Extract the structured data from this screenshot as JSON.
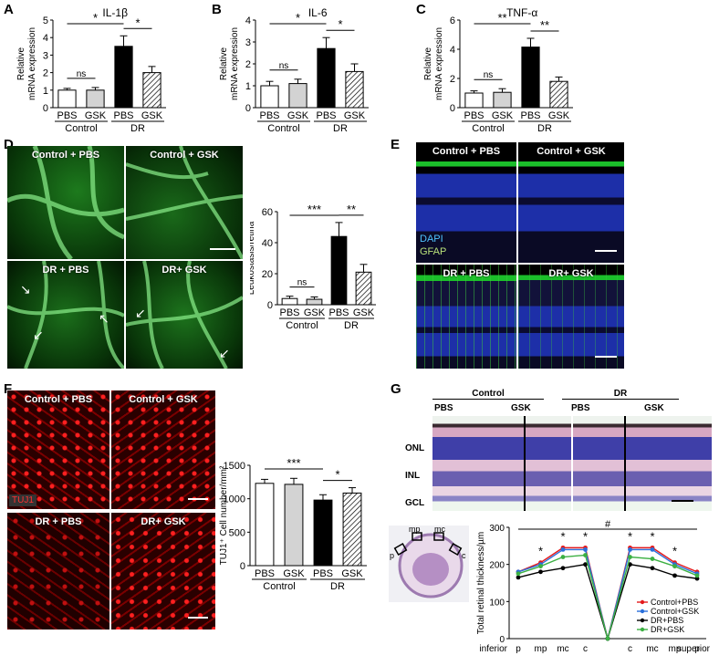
{
  "panels": {
    "A": "A",
    "B": "B",
    "C": "C",
    "D": "D",
    "E": "E",
    "F": "F",
    "G": "G"
  },
  "images": {
    "D_tl": "Control + PBS",
    "D_tr": "Control + GSK",
    "D_bl": "DR + PBS",
    "D_br": "DR+ GSK",
    "E_tl": "Control + PBS",
    "E_tr": "Control + GSK",
    "E_bl": "DR + PBS",
    "E_br": "DR+ GSK",
    "E_dapi": "DAPI",
    "E_gfap": "GFAP",
    "F_tl": "Control + PBS",
    "F_tr": "Control + GSK",
    "F_bl": "DR + PBS",
    "F_br": "DR+ GSK",
    "F_tuj1": "TUJ1",
    "G_control": "Control",
    "G_dr": "DR",
    "G_pbs1": "PBS",
    "G_gsk1": "GSK",
    "G_pbs2": "PBS",
    "G_gsk2": "GSK",
    "G_onl": "ONL",
    "G_inl": "INL",
    "G_gcl": "GCL",
    "G_p": "p",
    "G_mp": "mp",
    "G_mc": "mc",
    "G_c": "c"
  },
  "colors": {
    "black": "#000000",
    "white": "#ffffff",
    "grey": "#d0d0d0",
    "red": "#e41a1c",
    "blue": "#2a6fdb",
    "green": "#3cb043"
  },
  "chart_data": [
    {
      "id": "A",
      "type": "bar",
      "title": "IL-1β",
      "ylabel": "Relative mRNA expression",
      "ylim": [
        0,
        5
      ],
      "yticks": [
        0,
        1,
        2,
        3,
        4,
        5
      ],
      "categories": [
        "PBS",
        "GSK",
        "PBS",
        "GSK"
      ],
      "groups": [
        "Control",
        "DR"
      ],
      "values": [
        1.0,
        1.0,
        3.5,
        2.0
      ],
      "errors": [
        0.1,
        0.15,
        0.6,
        0.35
      ],
      "annotations": [
        {
          "text": "*",
          "between": [
            0,
            2
          ]
        },
        {
          "text": "ns",
          "between": [
            0,
            1
          ]
        },
        {
          "text": "*",
          "between": [
            2,
            3
          ]
        }
      ]
    },
    {
      "id": "B",
      "type": "bar",
      "title": "IL-6",
      "ylabel": "Relative mRNA expression",
      "ylim": [
        0,
        4
      ],
      "yticks": [
        0,
        1,
        2,
        3,
        4
      ],
      "categories": [
        "PBS",
        "GSK",
        "PBS",
        "GSK"
      ],
      "groups": [
        "Control",
        "DR"
      ],
      "values": [
        1.0,
        1.1,
        2.7,
        1.65
      ],
      "errors": [
        0.2,
        0.2,
        0.5,
        0.35
      ],
      "annotations": [
        {
          "text": "*",
          "between": [
            0,
            2
          ]
        },
        {
          "text": "ns",
          "between": [
            0,
            1
          ]
        },
        {
          "text": "*",
          "between": [
            2,
            3
          ]
        }
      ]
    },
    {
      "id": "C",
      "type": "bar",
      "title": "TNF-α",
      "ylabel": "Relative mRNA expression",
      "ylim": [
        0,
        6
      ],
      "yticks": [
        0,
        2,
        4,
        6
      ],
      "categories": [
        "PBS",
        "GSK",
        "PBS",
        "GSK"
      ],
      "groups": [
        "Control",
        "DR"
      ],
      "values": [
        1.0,
        1.05,
        4.15,
        1.8
      ],
      "errors": [
        0.15,
        0.25,
        0.6,
        0.3
      ],
      "annotations": [
        {
          "text": "**",
          "between": [
            0,
            2
          ]
        },
        {
          "text": "ns",
          "between": [
            0,
            1
          ]
        },
        {
          "text": "**",
          "between": [
            2,
            3
          ]
        }
      ]
    },
    {
      "id": "D",
      "type": "bar",
      "title": "",
      "ylabel": "Leukostasis/retina",
      "ylim": [
        0,
        60
      ],
      "yticks": [
        0,
        20,
        40,
        60
      ],
      "categories": [
        "PBS",
        "GSK",
        "PBS",
        "GSK"
      ],
      "groups": [
        "Control",
        "DR"
      ],
      "values": [
        4,
        3.5,
        44,
        21
      ],
      "errors": [
        1.5,
        1.5,
        9,
        5
      ],
      "annotations": [
        {
          "text": "***",
          "between": [
            0,
            2
          ]
        },
        {
          "text": "ns",
          "between": [
            0,
            1
          ]
        },
        {
          "text": "**",
          "between": [
            2,
            3
          ]
        }
      ]
    },
    {
      "id": "F",
      "type": "bar",
      "title": "",
      "ylabel": "TUJ1⁺ Cell number/mm²",
      "ylim": [
        0,
        1500
      ],
      "yticks": [
        0,
        500,
        1000,
        1500
      ],
      "categories": [
        "PBS",
        "GSK",
        "PBS",
        "GSK"
      ],
      "groups": [
        "Control",
        "DR"
      ],
      "values": [
        1230,
        1215,
        980,
        1085
      ],
      "errors": [
        60,
        90,
        80,
        80
      ],
      "annotations": [
        {
          "text": "***",
          "between": [
            0,
            2
          ]
        },
        {
          "text": "*",
          "between": [
            2,
            3
          ]
        }
      ]
    },
    {
      "id": "G",
      "type": "line",
      "title": "",
      "ylabel": "Total retinal thickness/µm",
      "ylim": [
        0,
        300
      ],
      "yticks": [
        0,
        100,
        200,
        300
      ],
      "x": [
        "p",
        "mp",
        "mc",
        "c",
        "",
        "c",
        "mc",
        "mp",
        "p"
      ],
      "xend_labels": [
        "inferior",
        "superior"
      ],
      "series": [
        {
          "name": "Control+PBS",
          "color": "#e41a1c",
          "values": [
            180,
            205,
            245,
            245,
            0,
            245,
            245,
            205,
            180
          ]
        },
        {
          "name": "Control+GSK",
          "color": "#2a6fdb",
          "values": [
            180,
            200,
            240,
            240,
            0,
            240,
            240,
            200,
            175
          ]
        },
        {
          "name": "DR+PBS",
          "color": "#000000",
          "values": [
            165,
            180,
            190,
            200,
            0,
            200,
            190,
            170,
            162
          ]
        },
        {
          "name": "DR+GSK",
          "color": "#3cb043",
          "values": [
            175,
            195,
            220,
            225,
            0,
            220,
            215,
            195,
            170
          ]
        }
      ],
      "annotations": [
        {
          "text": "#"
        },
        {
          "text": "*",
          "at": 1
        },
        {
          "text": "*",
          "at": 2
        },
        {
          "text": "*",
          "at": 3
        },
        {
          "text": "*",
          "at": 5
        },
        {
          "text": "*",
          "at": 6
        },
        {
          "text": "*",
          "at": 7
        }
      ]
    }
  ]
}
